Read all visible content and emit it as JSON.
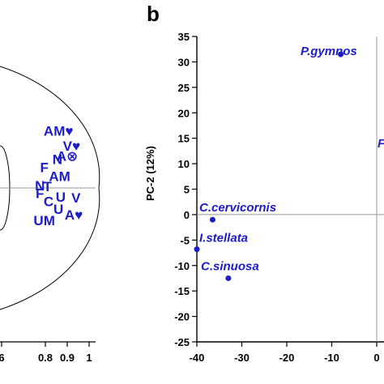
{
  "panel_b_letter": "b",
  "chart_data": [
    {
      "type": "scatter",
      "panel": "a",
      "x_ticks": [
        "6",
        "0.8",
        "0.9",
        "1"
      ],
      "xlim": [
        0.56,
        1.02
      ],
      "ylim": [
        -1.05,
        1.05
      ],
      "grid": false,
      "series_color": "#1c1cc8",
      "points": [
        {
          "label": "AM♥",
          "x": 0.86,
          "y": 0.46
        },
        {
          "label": "V♥",
          "x": 0.92,
          "y": 0.33
        },
        {
          "label": "N",
          "x": 0.855,
          "y": 0.21
        },
        {
          "label": "A⊗",
          "x": 0.9,
          "y": 0.24
        },
        {
          "label": "F",
          "x": 0.795,
          "y": 0.14
        },
        {
          "label": "AM",
          "x": 0.865,
          "y": 0.06
        },
        {
          "label": "N",
          "x": 0.775,
          "y": -0.02
        },
        {
          "label": "T",
          "x": 0.81,
          "y": -0.03
        },
        {
          "label": "F",
          "x": 0.775,
          "y": -0.09
        },
        {
          "label": "U",
          "x": 0.87,
          "y": -0.12
        },
        {
          "label": "C",
          "x": 0.815,
          "y": -0.16
        },
        {
          "label": "U",
          "x": 0.86,
          "y": -0.23
        },
        {
          "label": "V",
          "x": 0.94,
          "y": -0.13
        },
        {
          "label": "UM",
          "x": 0.795,
          "y": -0.33
        },
        {
          "label": "A♥",
          "x": 0.93,
          "y": -0.28
        }
      ]
    },
    {
      "type": "scatter",
      "panel": "b",
      "ylabel": "PC-2 (12%)",
      "xlim": [
        -40,
        0
      ],
      "ylim": [
        -25,
        35
      ],
      "x_ticks": [
        -40,
        -30,
        -20,
        -10,
        0
      ],
      "y_ticks": [
        35,
        30,
        25,
        20,
        15,
        10,
        5,
        0,
        -5,
        -10,
        -15,
        -20,
        -25
      ],
      "grid": false,
      "series_color": "#1c1cc8",
      "points": [
        {
          "label": "P.gymnos",
          "x": -8,
          "y": 31.5
        },
        {
          "label": "C.cervicornis",
          "x": -36.5,
          "y": -1
        },
        {
          "label": "I.stellata",
          "x": -40,
          "y": -6.8
        },
        {
          "label": "C.sinuosa",
          "x": -33,
          "y": -12.5
        }
      ],
      "partial_labels": [
        {
          "text": "F",
          "x": 0.5,
          "y": 14
        }
      ]
    }
  ]
}
